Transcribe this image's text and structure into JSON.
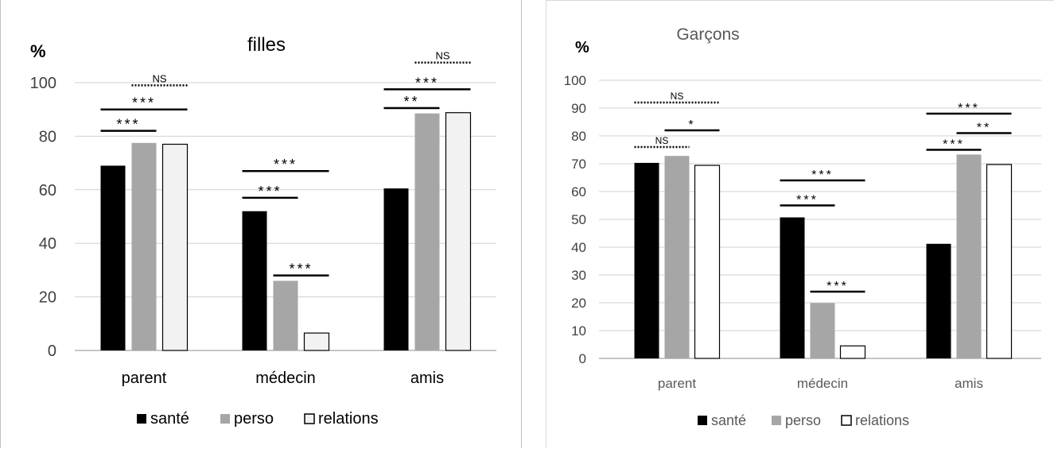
{
  "chart_data": [
    {
      "type": "bar",
      "title": "filles",
      "ylabel": "%",
      "categories": [
        "parent",
        "médecin",
        "amis"
      ],
      "ylim": [
        0,
        100
      ],
      "yticks": [
        0,
        20,
        40,
        60,
        80,
        100
      ],
      "grid": true,
      "legend_position": "bottom",
      "series": [
        {
          "name": "santé",
          "values": [
            69,
            52,
            60.5
          ],
          "color": "#000000"
        },
        {
          "name": "perso",
          "values": [
            77.5,
            26,
            88.5
          ],
          "color": "#a6a6a6"
        },
        {
          "name": "relations",
          "values": [
            77,
            6.5,
            88.8
          ],
          "color": "#f2f2f2"
        }
      ],
      "annotations": [
        {
          "category": "parent",
          "pair": [
            "santé",
            "perso"
          ],
          "label": "***",
          "y": 82,
          "style": "solid"
        },
        {
          "category": "parent",
          "pair": [
            "santé",
            "relations"
          ],
          "label": "***",
          "y": 90,
          "style": "solid"
        },
        {
          "category": "parent",
          "pair": [
            "perso",
            "relations"
          ],
          "label": "NS",
          "y": 99,
          "style": "dotted"
        },
        {
          "category": "médecin",
          "pair": [
            "santé",
            "perso"
          ],
          "label": "***",
          "y": 57,
          "style": "solid"
        },
        {
          "category": "médecin",
          "pair": [
            "santé",
            "relations"
          ],
          "label": "***",
          "y": 67,
          "style": "solid"
        },
        {
          "category": "médecin",
          "pair": [
            "perso",
            "relations"
          ],
          "label": "***",
          "y": 28,
          "style": "solid"
        },
        {
          "category": "amis",
          "pair": [
            "santé",
            "perso"
          ],
          "label": "**",
          "y": 90.5,
          "style": "solid"
        },
        {
          "category": "amis",
          "pair": [
            "santé",
            "relations"
          ],
          "label": "***",
          "y": 97.5,
          "style": "solid"
        },
        {
          "category": "amis",
          "pair": [
            "perso",
            "relations"
          ],
          "label": "NS",
          "y": 107.5,
          "style": "dotted"
        }
      ]
    },
    {
      "type": "bar",
      "title": "Garçons",
      "ylabel": "%",
      "categories": [
        "parent",
        "médecin",
        "amis"
      ],
      "ylim": [
        0,
        100
      ],
      "yticks": [
        0,
        10,
        20,
        30,
        40,
        50,
        60,
        70,
        80,
        90,
        100
      ],
      "grid": true,
      "legend_position": "bottom",
      "series": [
        {
          "name": "santé",
          "values": [
            70.3,
            50.7,
            41.2
          ],
          "color": "#000000"
        },
        {
          "name": "perso",
          "values": [
            72.8,
            19.9,
            73.3
          ],
          "color": "#a6a6a6"
        },
        {
          "name": "relations",
          "values": [
            69.4,
            4.5,
            69.7
          ],
          "color": "#ffffff"
        }
      ],
      "annotations": [
        {
          "category": "parent",
          "pair": [
            "santé",
            "perso"
          ],
          "label": "NS",
          "y": 76,
          "style": "dotted"
        },
        {
          "category": "parent",
          "pair": [
            "perso",
            "relations"
          ],
          "label": "*",
          "y": 82,
          "style": "solid"
        },
        {
          "category": "parent",
          "pair": [
            "santé",
            "relations"
          ],
          "label": "NS",
          "y": 92,
          "style": "dotted"
        },
        {
          "category": "médecin",
          "pair": [
            "santé",
            "perso"
          ],
          "label": "***",
          "y": 55,
          "style": "solid"
        },
        {
          "category": "médecin",
          "pair": [
            "santé",
            "relations"
          ],
          "label": "***",
          "y": 64,
          "style": "solid"
        },
        {
          "category": "médecin",
          "pair": [
            "perso",
            "relations"
          ],
          "label": "***",
          "y": 24,
          "style": "solid"
        },
        {
          "category": "amis",
          "pair": [
            "santé",
            "perso"
          ],
          "label": "***",
          "y": 75,
          "style": "solid"
        },
        {
          "category": "amis",
          "pair": [
            "perso",
            "relations"
          ],
          "label": "**",
          "y": 81,
          "style": "solid"
        },
        {
          "category": "amis",
          "pair": [
            "santé",
            "relations"
          ],
          "label": "***",
          "y": 88,
          "style": "solid"
        }
      ]
    }
  ]
}
